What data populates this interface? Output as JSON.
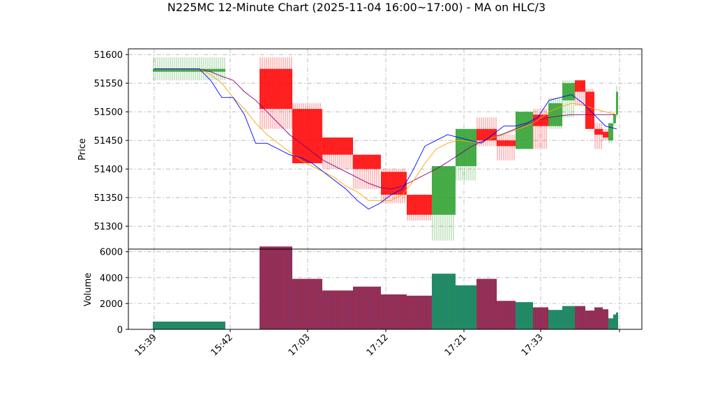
{
  "chart_data": {
    "type": "candlestick",
    "title": "N225MC 12-Minute Chart (2025-11-04 16:00~17:00) - MA on HLC/3",
    "price_ylabel": "Price",
    "volume_ylabel": "Volume",
    "price_ylim": [
      51260,
      51610
    ],
    "price_yticks": [
      51300,
      51350,
      51400,
      51450,
      51500,
      51550,
      51600
    ],
    "volume_ylim": [
      0,
      6200
    ],
    "volume_yticks": [
      0,
      2000,
      4000,
      6000
    ],
    "x_ticklabels": [
      "15:39",
      "15:42",
      "17:03",
      "17:12",
      "17:21",
      "17:33"
    ],
    "grid": true,
    "up_color": "#2ca02c",
    "down_color": "#ff0000",
    "ma_fast_color": "#0000ff",
    "ma_mid_color": "#ffa500",
    "ma_slow_color": "#800080",
    "vol_up_color": "#1f8f5a",
    "vol_down_color": "#9e2a4a",
    "candles": [
      {
        "o": 51570,
        "h": 51595,
        "l": 51555,
        "c": 51575,
        "v": 600
      },
      {
        "o": 51575,
        "h": 51595,
        "l": 51470,
        "c": 51505,
        "v": 6400
      },
      {
        "o": 51505,
        "h": 51515,
        "l": 51410,
        "c": 51410,
        "v": 3900
      },
      {
        "o": 51455,
        "h": 51455,
        "l": 51400,
        "c": 51425,
        "v": 3000
      },
      {
        "o": 51425,
        "h": 51425,
        "l": 51365,
        "c": 51400,
        "v": 3300
      },
      {
        "o": 51395,
        "h": 51400,
        "l": 51340,
        "c": 51355,
        "v": 2700
      },
      {
        "o": 51355,
        "h": 51355,
        "l": 51310,
        "c": 51320,
        "v": 2600
      },
      {
        "o": 51320,
        "h": 51405,
        "l": 51275,
        "c": 51405,
        "v": 4300
      },
      {
        "o": 51405,
        "h": 51470,
        "l": 51380,
        "c": 51470,
        "v": 3400
      },
      {
        "o": 51470,
        "h": 51490,
        "l": 51440,
        "c": 51450,
        "v": 3900
      },
      {
        "o": 51450,
        "h": 51460,
        "l": 51415,
        "c": 51440,
        "v": 2200
      },
      {
        "o": 51435,
        "h": 51500,
        "l": 51435,
        "c": 51500,
        "v": 2100
      },
      {
        "o": 51495,
        "h": 51505,
        "l": 51435,
        "c": 51475,
        "v": 1700
      },
      {
        "o": 51475,
        "h": 51525,
        "l": 51470,
        "c": 51515,
        "v": 1500
      },
      {
        "o": 51520,
        "h": 51555,
        "l": 51490,
        "c": 51550,
        "v": 1800
      },
      {
        "o": 51555,
        "h": 51555,
        "l": 51510,
        "c": 51535,
        "v": 1800
      },
      {
        "o": 51535,
        "h": 51540,
        "l": 51470,
        "c": 51470,
        "v": 1450
      },
      {
        "o": 51470,
        "h": 51480,
        "l": 51435,
        "c": 51460,
        "v": 1700
      },
      {
        "o": 51465,
        "h": 51470,
        "l": 51450,
        "c": 51455,
        "v": 1550
      },
      {
        "o": 51450,
        "h": 51480,
        "l": 51445,
        "c": 51480,
        "v": 850
      },
      {
        "o": 51480,
        "h": 51500,
        "l": 51475,
        "c": 51495,
        "v": 1150
      },
      {
        "o": 51495,
        "h": 51545,
        "l": 51490,
        "c": 51535,
        "v": 1300
      }
    ],
    "ma_fast": [
      51575,
      51575,
      51575,
      51575,
      51575,
      51555,
      51525,
      51525,
      51495,
      51445,
      51445,
      51435,
      51425,
      51420,
      51410,
      51395,
      51380,
      51365,
      51345,
      51330,
      51340,
      51355,
      51365,
      51400,
      51440,
      51450,
      51460,
      51455,
      51450,
      51445,
      51460,
      51475,
      51475,
      51480,
      51490,
      51520,
      51525,
      51530,
      51515,
      51495,
      51475,
      51470
    ],
    "ma_mid": [
      51575,
      51575,
      51575,
      51575,
      51575,
      51565,
      51550,
      51525,
      51505,
      51480,
      51460,
      51445,
      51430,
      51415,
      51405,
      51395,
      51385,
      51370,
      51360,
      51345,
      51345,
      51345,
      51355,
      51380,
      51410,
      51435,
      51445,
      51450,
      51448,
      51445,
      51455,
      51460,
      51468,
      51475,
      51485,
      51500,
      51508,
      51515,
      51512,
      51505,
      51500,
      51495
    ],
    "ma_slow": [
      51575,
      51575,
      51575,
      51575,
      51575,
      51570,
      51562,
      51555,
      51535,
      51520,
      51500,
      51480,
      51460,
      51445,
      51430,
      51415,
      51405,
      51395,
      51385,
      51375,
      51368,
      51365,
      51370,
      51380,
      51390,
      51400,
      51412,
      51425,
      51438,
      51448,
      51455,
      51462,
      51470,
      51478,
      51485,
      51490,
      51493,
      51495,
      51495,
      51495,
      51495,
      51495
    ]
  }
}
